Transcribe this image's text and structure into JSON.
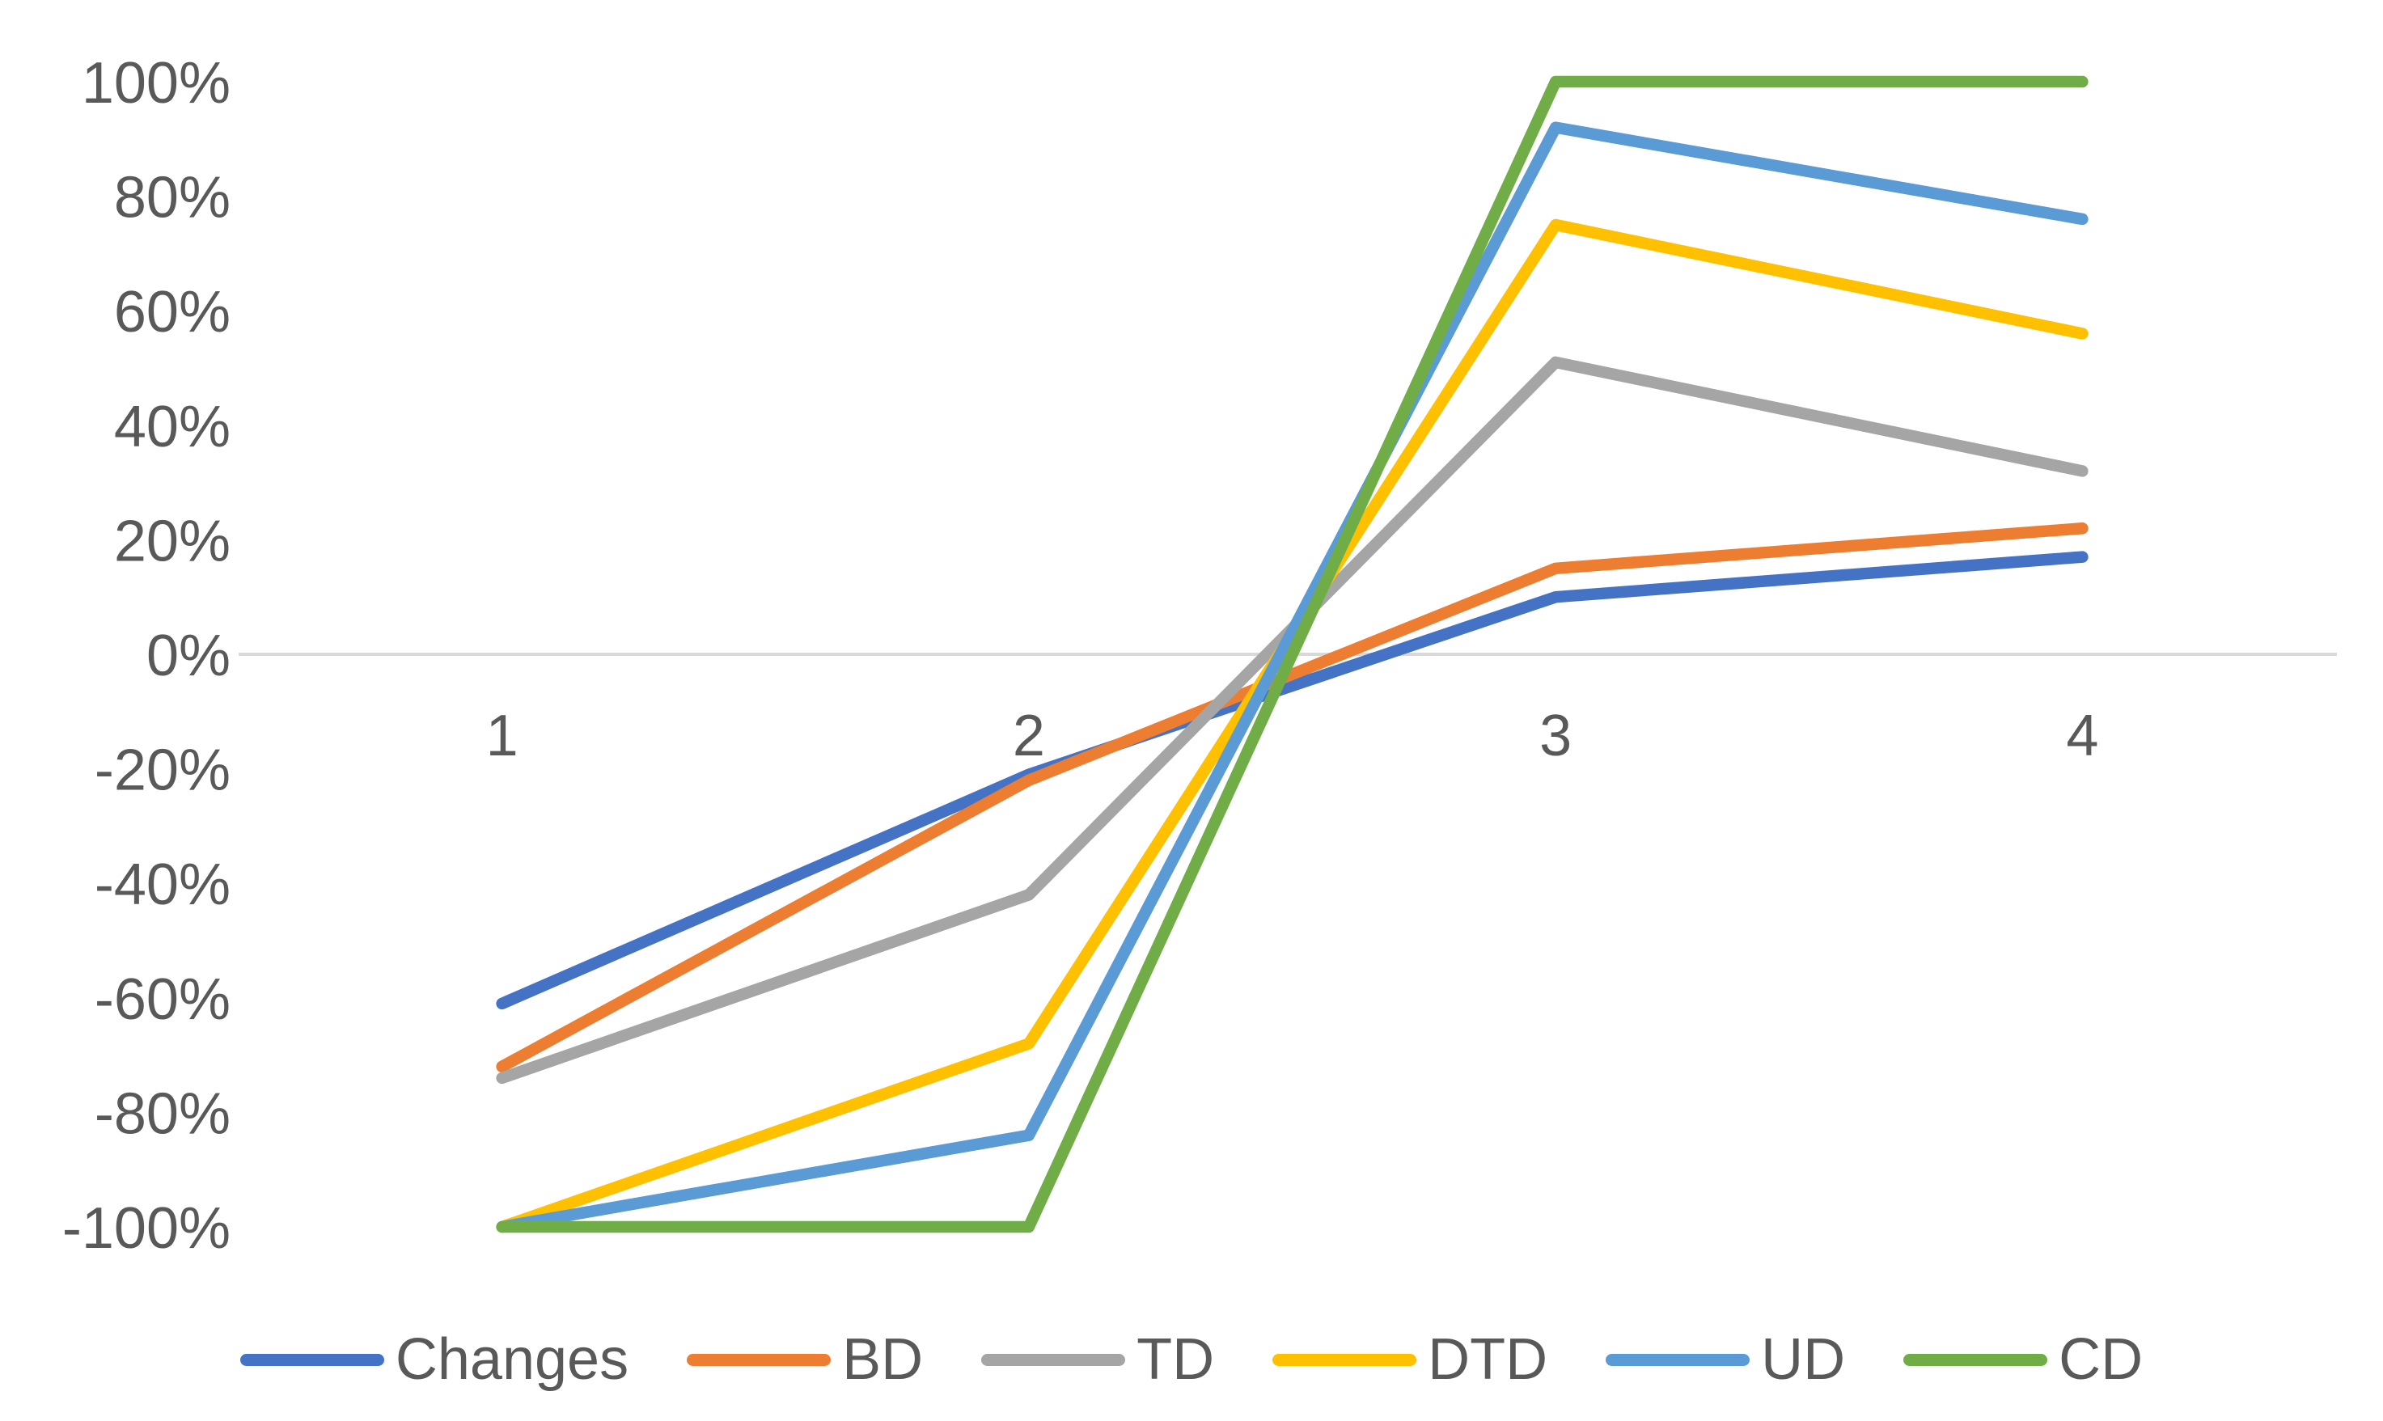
{
  "chart_data": {
    "type": "line",
    "title": "",
    "xlabel": "",
    "ylabel": "",
    "categories": [
      "1",
      "2",
      "3",
      "4"
    ],
    "series": [
      {
        "name": "Changes",
        "color": "#4472C4",
        "values": [
          -61,
          -21,
          10,
          17
        ]
      },
      {
        "name": "BD",
        "color": "#ED7D31",
        "values": [
          -72,
          -22,
          15,
          22
        ]
      },
      {
        "name": "TD",
        "color": "#A5A5A5",
        "values": [
          -74,
          -42,
          51,
          32
        ]
      },
      {
        "name": "DTD",
        "color": "#FFC000",
        "values": [
          -100,
          -68,
          75,
          56
        ]
      },
      {
        "name": "UD",
        "color": "#5B9BD5",
        "values": [
          -100,
          -84,
          92,
          76
        ]
      },
      {
        "name": "CD",
        "color": "#70AD47",
        "values": [
          -100,
          -100,
          100,
          100
        ]
      }
    ],
    "ylim": [
      -100,
      100
    ],
    "y_tick_step": 20,
    "y_tick_labels": [
      "100%",
      "80%",
      "60%",
      "40%",
      "20%",
      "0%",
      "-20%",
      "-40%",
      "-60%",
      "-80%",
      "-100%"
    ],
    "x_tick_labels": [
      "1",
      "2",
      "3",
      "4"
    ],
    "grid": "zero-line-only",
    "legend_position": "bottom",
    "line_width": 14.5
  },
  "axis": {
    "tick_label_color": "#595959",
    "gridline_color": "#D9D9D9",
    "tick_font_size": 72
  }
}
